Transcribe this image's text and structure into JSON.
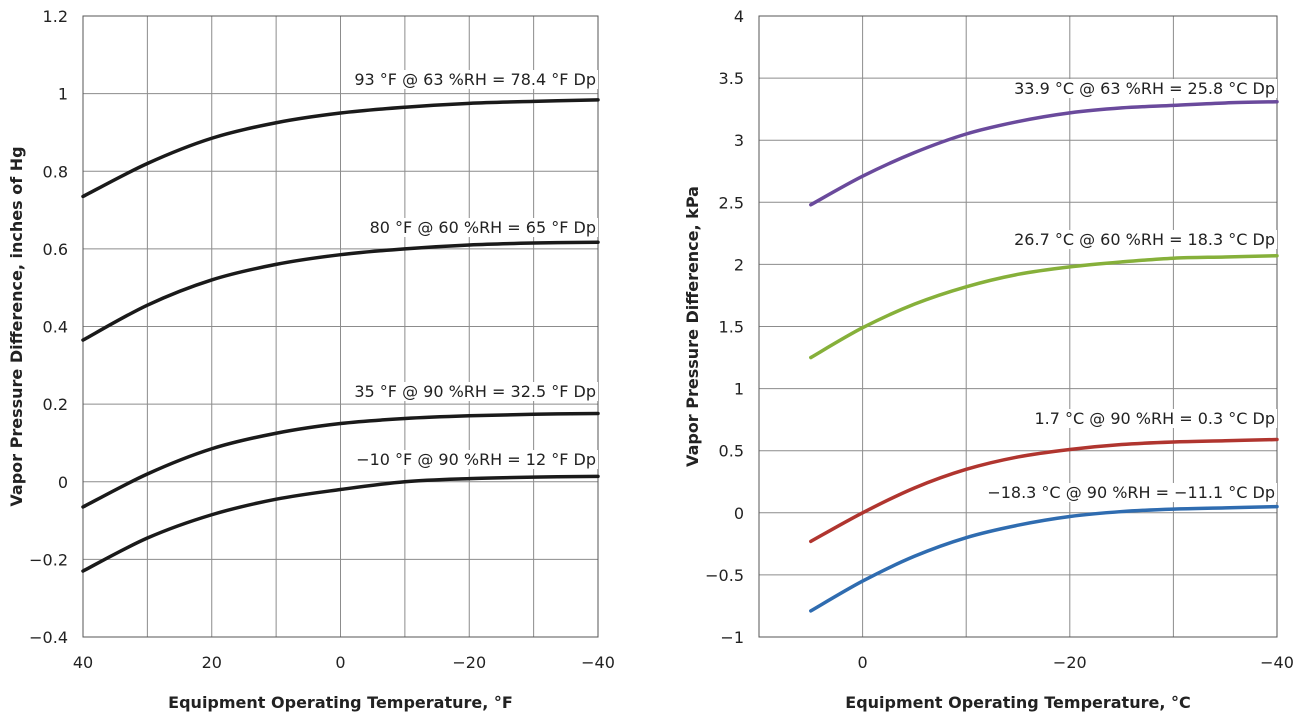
{
  "chart_data": [
    {
      "type": "line",
      "xlabel": "Equipment Operating Temperature, °F",
      "ylabel": "Vapor Pressure Difference, inches of Hg",
      "xlim": [
        40,
        -40
      ],
      "ylim": [
        -0.4,
        1.2
      ],
      "x_ticks": [
        "40",
        "20",
        "0",
        "−20",
        "−40"
      ],
      "y_ticks": [
        "−0.4",
        "−0.2",
        "0",
        "0.2",
        "0.4",
        "0.6",
        "0.8",
        "1",
        "1.2"
      ],
      "x_grid_step": 10,
      "y_grid_step": 0.2,
      "grid": true,
      "x": [
        40,
        30,
        20,
        10,
        0,
        -10,
        -20,
        -30,
        -40
      ],
      "series": [
        {
          "name": "93 °F @ 63 %RH = 78.4 °F Dp",
          "color": "#1a1a1a",
          "values": [
            0.735,
            0.82,
            0.885,
            0.925,
            0.95,
            0.965,
            0.975,
            0.98,
            0.984
          ]
        },
        {
          "name": "80 °F @ 60 %RH = 65 °F Dp",
          "color": "#1a1a1a",
          "values": [
            0.365,
            0.455,
            0.52,
            0.56,
            0.585,
            0.6,
            0.61,
            0.615,
            0.617
          ]
        },
        {
          "name": "35 °F @ 90 %RH = 32.5 °F Dp",
          "color": "#1a1a1a",
          "values": [
            -0.065,
            0.02,
            0.085,
            0.125,
            0.15,
            0.163,
            0.17,
            0.174,
            0.176
          ]
        },
        {
          "name": "−10 °F @ 90 %RH = 12 °F Dp",
          "color": "#1a1a1a",
          "values": [
            -0.23,
            -0.145,
            -0.085,
            -0.045,
            -0.02,
            0.0,
            0.008,
            0.012,
            0.014
          ]
        }
      ]
    },
    {
      "type": "line",
      "xlabel": "Equipment Operating Temperature, °C",
      "ylabel": "Vapor Pressure Difference, kPa",
      "xlim": [
        10,
        -40
      ],
      "ylim": [
        -1,
        4
      ],
      "x_ticks": [
        "0",
        "−20",
        "−40"
      ],
      "y_ticks": [
        "−1",
        "−0.5",
        "0",
        "0.5",
        "1",
        "1.5",
        "2",
        "2.5",
        "3",
        "3.5",
        "4"
      ],
      "x_grid_step": 10,
      "y_grid_step": 0.5,
      "grid": true,
      "x": [
        5,
        0,
        -5,
        -10,
        -15,
        -20,
        -25,
        -30,
        -35,
        -40
      ],
      "series": [
        {
          "name": "33.9 °C @ 63 %RH = 25.8 °C Dp",
          "color": "#6a4a9c",
          "values": [
            2.48,
            2.71,
            2.9,
            3.05,
            3.15,
            3.22,
            3.26,
            3.28,
            3.3,
            3.31
          ]
        },
        {
          "name": "26.7 °C @ 60 %RH = 18.3 °C Dp",
          "color": "#86b03a",
          "values": [
            1.25,
            1.49,
            1.68,
            1.82,
            1.92,
            1.98,
            2.02,
            2.05,
            2.06,
            2.07
          ]
        },
        {
          "name": "1.7 °C @ 90 %RH = 0.3 °C Dp",
          "color": "#b0352f",
          "values": [
            -0.23,
            0.0,
            0.2,
            0.35,
            0.45,
            0.51,
            0.55,
            0.57,
            0.58,
            0.59
          ]
        },
        {
          "name": "−18.3 °C @ 90 %RH = −11.1 °C Dp",
          "color": "#2f6cb0",
          "values": [
            -0.79,
            -0.55,
            -0.35,
            -0.2,
            -0.1,
            -0.03,
            0.01,
            0.03,
            0.04,
            0.05
          ]
        }
      ]
    }
  ]
}
